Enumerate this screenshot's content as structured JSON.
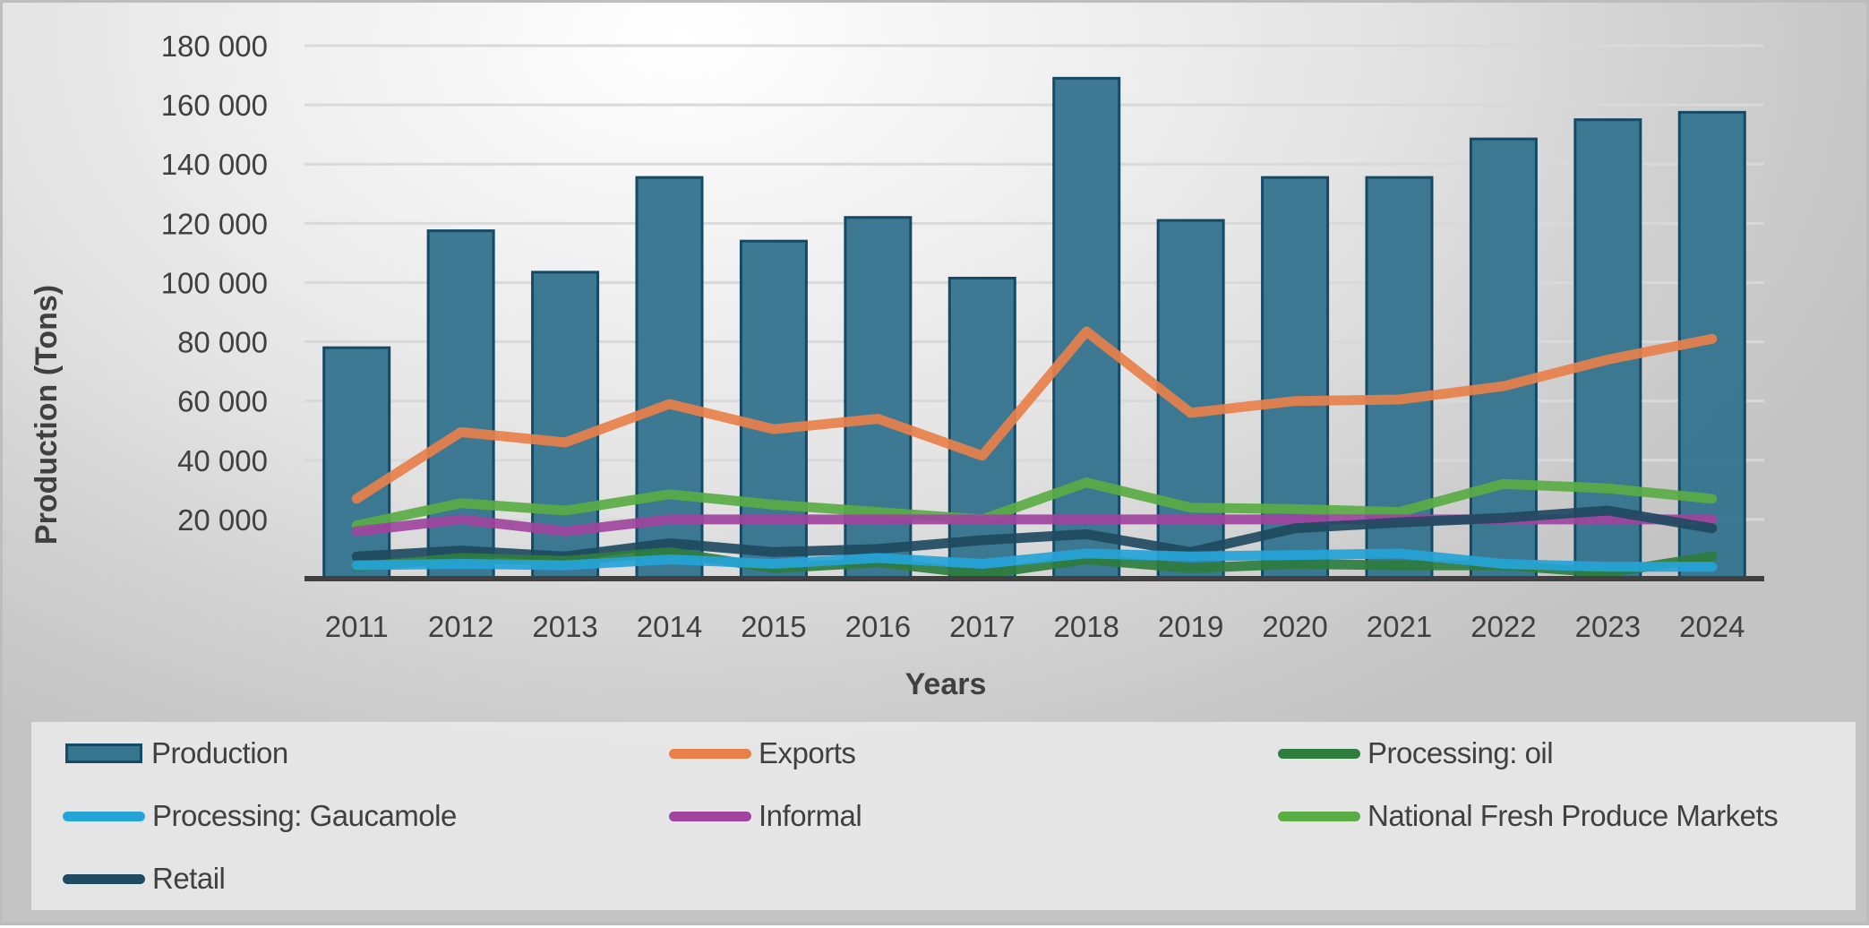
{
  "chart_data": {
    "type": "bar+line",
    "title": "",
    "xlabel": "Years",
    "ylabel": "Production (Tons)",
    "ylim": [
      0,
      180000
    ],
    "yticks": [
      20000,
      40000,
      60000,
      80000,
      100000,
      120000,
      140000,
      160000,
      180000
    ],
    "ytick_labels": [
      "20 000",
      "40 000",
      "60 000",
      "80 000",
      "100 000",
      "120 000",
      "140 000",
      "160 000",
      "180 000"
    ],
    "grid": true,
    "legend_position": "bottom",
    "categories": [
      "2011",
      "2012",
      "2013",
      "2014",
      "2015",
      "2016",
      "2017",
      "2018",
      "2019",
      "2020",
      "2021",
      "2022",
      "2023",
      "2024"
    ],
    "series": [
      {
        "name": "Production",
        "kind": "bar",
        "color": "#37758f",
        "border_color": "#154a66",
        "values": [
          78000,
          117500,
          103500,
          135500,
          114000,
          122000,
          101500,
          169000,
          121000,
          135500,
          135500,
          148500,
          155000,
          157500
        ]
      },
      {
        "name": "Exports",
        "kind": "line",
        "color": "#e8804a",
        "values": [
          27000,
          49500,
          46000,
          59000,
          50500,
          54000,
          41500,
          83500,
          56000,
          60000,
          60500,
          65000,
          74000,
          81000
        ]
      },
      {
        "name": "Processing: oil",
        "kind": "line",
        "color": "#2e7d3e",
        "values": [
          4000,
          7000,
          6000,
          9000,
          3500,
          5500,
          1500,
          6500,
          3500,
          5000,
          4500,
          4500,
          2000,
          7500
        ]
      },
      {
        "name": "Processing: Gaucamole",
        "kind": "line",
        "color": "#25a4d8",
        "values": [
          4500,
          5000,
          4500,
          6500,
          5000,
          7000,
          5000,
          8500,
          7500,
          8000,
          8500,
          5000,
          4000,
          4000
        ]
      },
      {
        "name": "Informal",
        "kind": "line",
        "color": "#a0449e",
        "values": [
          16000,
          20000,
          16000,
          20000,
          20000,
          20000,
          20000,
          20000,
          20000,
          20000,
          20000,
          20000,
          20000,
          20000
        ]
      },
      {
        "name": "National Fresh Produce Markets",
        "kind": "line",
        "color": "#5aad45",
        "values": [
          18000,
          25500,
          23000,
          28500,
          25000,
          22500,
          20000,
          32500,
          24000,
          23500,
          22500,
          32000,
          30500,
          27000
        ]
      },
      {
        "name": "Retail",
        "kind": "line",
        "color": "#1f4a60",
        "values": [
          7500,
          9500,
          7500,
          12000,
          9000,
          10000,
          13000,
          15000,
          9000,
          17000,
          19000,
          20500,
          23000,
          17000
        ]
      }
    ]
  }
}
